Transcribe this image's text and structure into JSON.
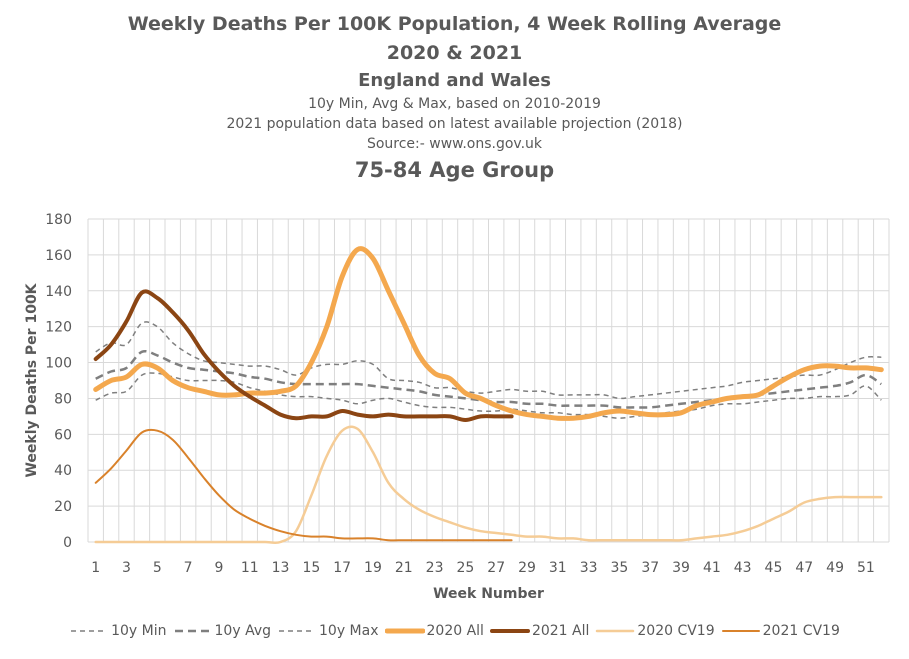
{
  "chart_data": {
    "type": "line",
    "title": "Weekly Deaths Per 100K Population, 4 Week Rolling Average",
    "title_line2": "2020 & 2021",
    "region": "England and Wales",
    "subtitle1": "10y Min, Avg & Max, based on 2010-2019",
    "subtitle2": "2021 population data based on latest available projection (2018)",
    "source": "Source:- www.ons.gov.uk",
    "age_group": "75-84 Age Group",
    "xlabel": "Week Number",
    "ylabel": "Weekly Deaths Per 100K",
    "xlim": [
      1,
      52
    ],
    "ylim": [
      0,
      180
    ],
    "yticks": [
      0,
      20,
      40,
      60,
      80,
      100,
      120,
      140,
      160,
      180
    ],
    "xticks": [
      1,
      3,
      5,
      7,
      9,
      11,
      13,
      15,
      17,
      19,
      21,
      23,
      25,
      27,
      29,
      31,
      33,
      35,
      37,
      39,
      41,
      43,
      45,
      47,
      49,
      51
    ],
    "grid": true,
    "legend_position": "bottom",
    "series": [
      {
        "name": "10y Min",
        "color": "#7f7f7f",
        "style": "dashed-thin",
        "width": 1.5,
        "x": [
          1,
          2,
          3,
          4,
          5,
          6,
          7,
          8,
          9,
          10,
          11,
          12,
          13,
          14,
          15,
          16,
          17,
          18,
          19,
          20,
          21,
          22,
          23,
          24,
          25,
          26,
          27,
          28,
          29,
          30,
          31,
          32,
          33,
          34,
          35,
          36,
          37,
          38,
          39,
          40,
          41,
          42,
          43,
          44,
          45,
          46,
          47,
          48,
          49,
          50,
          51,
          52
        ],
        "values": [
          79,
          83,
          84,
          93,
          94,
          92,
          90,
          90,
          90,
          89,
          86,
          84,
          82,
          81,
          81,
          80,
          79,
          77,
          79,
          80,
          78,
          76,
          75,
          75,
          74,
          73,
          73,
          74,
          73,
          72,
          72,
          71,
          71,
          70,
          69,
          70,
          71,
          72,
          73,
          74,
          76,
          77,
          77,
          78,
          79,
          80,
          80,
          81,
          81,
          82,
          87,
          79
        ]
      },
      {
        "name": "10y Avg",
        "color": "#7f7f7f",
        "style": "dashed-thick",
        "width": 2.5,
        "x": [
          1,
          2,
          3,
          4,
          5,
          6,
          7,
          8,
          9,
          10,
          11,
          12,
          13,
          14,
          15,
          16,
          17,
          18,
          19,
          20,
          21,
          22,
          23,
          24,
          25,
          26,
          27,
          28,
          29,
          30,
          31,
          32,
          33,
          34,
          35,
          36,
          37,
          38,
          39,
          40,
          41,
          42,
          43,
          44,
          45,
          46,
          47,
          48,
          49,
          50,
          51,
          52
        ],
        "values": [
          91,
          95,
          97,
          106,
          104,
          100,
          97,
          96,
          95,
          94,
          92,
          91,
          89,
          88,
          88,
          88,
          88,
          88,
          87,
          86,
          85,
          84,
          82,
          81,
          80,
          79,
          78,
          78,
          77,
          77,
          76,
          76,
          76,
          76,
          75,
          75,
          75,
          76,
          77,
          78,
          79,
          80,
          81,
          82,
          83,
          84,
          85,
          86,
          87,
          89,
          93,
          88
        ]
      },
      {
        "name": "10y Max",
        "color": "#7f7f7f",
        "style": "dashed-thin",
        "width": 1.5,
        "x": [
          1,
          2,
          3,
          4,
          5,
          6,
          7,
          8,
          9,
          10,
          11,
          12,
          13,
          14,
          15,
          16,
          17,
          18,
          19,
          20,
          21,
          22,
          23,
          24,
          25,
          26,
          27,
          28,
          29,
          30,
          31,
          32,
          33,
          34,
          35,
          36,
          37,
          38,
          39,
          40,
          41,
          42,
          43,
          44,
          45,
          46,
          47,
          48,
          49,
          50,
          51,
          52
        ],
        "values": [
          106,
          111,
          110,
          122,
          120,
          111,
          105,
          101,
          100,
          99,
          98,
          98,
          96,
          93,
          97,
          99,
          99,
          101,
          99,
          91,
          90,
          89,
          86,
          86,
          84,
          83,
          84,
          85,
          84,
          84,
          82,
          82,
          82,
          82,
          80,
          81,
          82,
          83,
          84,
          85,
          86,
          87,
          89,
          90,
          91,
          92,
          93,
          93,
          96,
          100,
          103,
          103
        ]
      },
      {
        "name": "2020 All",
        "color": "#f4a84e",
        "style": "solid",
        "width": 5,
        "x": [
          1,
          2,
          3,
          4,
          5,
          6,
          7,
          8,
          9,
          10,
          11,
          12,
          13,
          14,
          15,
          16,
          17,
          18,
          19,
          20,
          21,
          22,
          23,
          24,
          25,
          26,
          27,
          28,
          29,
          30,
          31,
          32,
          33,
          34,
          35,
          36,
          37,
          38,
          39,
          40,
          41,
          42,
          43,
          44,
          45,
          46,
          47,
          48,
          49,
          50,
          51,
          52
        ],
        "values": [
          85,
          90,
          92,
          99,
          97,
          90,
          86,
          84,
          82,
          82,
          83,
          83,
          84,
          87,
          100,
          120,
          148,
          163,
          158,
          140,
          122,
          104,
          94,
          91,
          83,
          80,
          76,
          73,
          71,
          70,
          69,
          69,
          70,
          72,
          73,
          72,
          71,
          71,
          72,
          76,
          78,
          80,
          81,
          82,
          87,
          92,
          96,
          98,
          98,
          97,
          97,
          96
        ]
      },
      {
        "name": "2021 All",
        "color": "#8b4513",
        "style": "solid",
        "width": 4,
        "x": [
          1,
          2,
          3,
          4,
          5,
          6,
          7,
          8,
          9,
          10,
          11,
          12,
          13,
          14,
          15,
          16,
          17,
          18,
          19,
          20,
          21,
          22,
          23,
          24,
          25,
          26,
          27,
          28
        ],
        "values": [
          102,
          110,
          123,
          139,
          136,
          128,
          118,
          105,
          95,
          87,
          81,
          76,
          71,
          69,
          70,
          70,
          73,
          71,
          70,
          71,
          70,
          70,
          70,
          70,
          68,
          70,
          70,
          70
        ]
      },
      {
        "name": "2020 CV19",
        "color": "#f5cc96",
        "style": "solid",
        "width": 2.5,
        "x": [
          1,
          2,
          3,
          4,
          5,
          6,
          7,
          8,
          9,
          10,
          11,
          12,
          13,
          14,
          15,
          16,
          17,
          18,
          19,
          20,
          21,
          22,
          23,
          24,
          25,
          26,
          27,
          28,
          29,
          30,
          31,
          32,
          33,
          34,
          35,
          36,
          37,
          38,
          39,
          40,
          41,
          42,
          43,
          44,
          45,
          46,
          47,
          48,
          49,
          50,
          51,
          52
        ],
        "values": [
          0,
          0,
          0,
          0,
          0,
          0,
          0,
          0,
          0,
          0,
          0,
          0,
          0,
          6,
          26,
          48,
          62,
          63,
          50,
          33,
          24,
          18,
          14,
          11,
          8,
          6,
          5,
          4,
          3,
          3,
          2,
          2,
          1,
          1,
          1,
          1,
          1,
          1,
          1,
          2,
          3,
          4,
          6,
          9,
          13,
          17,
          22,
          24,
          25,
          25,
          25,
          25
        ]
      },
      {
        "name": "2021 CV19",
        "color": "#d9822b",
        "style": "solid",
        "width": 2,
        "x": [
          1,
          2,
          3,
          4,
          5,
          6,
          7,
          8,
          9,
          10,
          11,
          12,
          13,
          14,
          15,
          16,
          17,
          18,
          19,
          20,
          21,
          22,
          23,
          24,
          25,
          26,
          27,
          28
        ],
        "values": [
          33,
          41,
          51,
          61,
          62,
          57,
          47,
          36,
          26,
          18,
          13,
          9,
          6,
          4,
          3,
          3,
          2,
          2,
          2,
          1,
          1,
          1,
          1,
          1,
          1,
          1,
          1,
          1
        ]
      }
    ]
  }
}
